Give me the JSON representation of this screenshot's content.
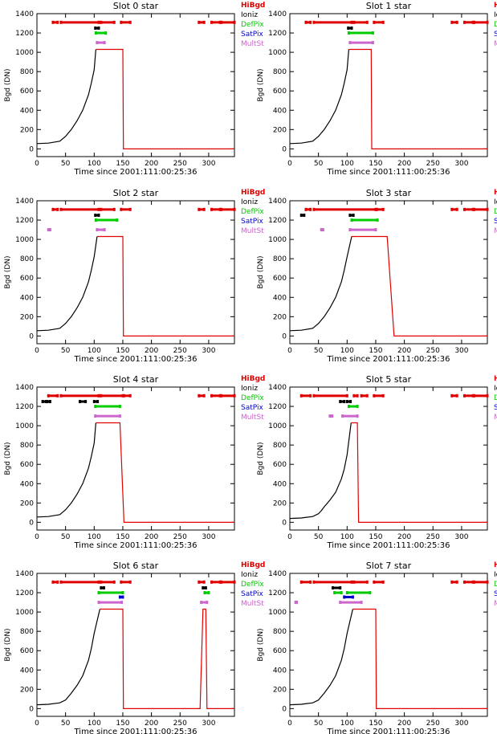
{
  "legend": [
    {
      "label": "HiBgd",
      "color": "#e00000"
    },
    {
      "label": "Ioniz",
      "color": "#000000"
    },
    {
      "label": "DefPix",
      "color": "#00cc00"
    },
    {
      "label": "SatPix",
      "color": "#0000cc"
    },
    {
      "label": "MultSt",
      "color": "#cc66cc"
    }
  ],
  "chart_data": [
    {
      "type": "line",
      "title": "Slot 0 star",
      "xlabel": "Time since 2001:111:00:25:36",
      "ylabel": "Bgd (DN)",
      "xlim": [
        0,
        345
      ],
      "ylim": [
        -80,
        1400
      ],
      "xticks": [
        0,
        50,
        100,
        150,
        200,
        250,
        300
      ],
      "yticks": [
        0,
        200,
        400,
        600,
        800,
        1000,
        1200,
        1400
      ],
      "black_end": 103,
      "series": [
        {
          "x": [
            0,
            20,
            40,
            50,
            60,
            70,
            80,
            90,
            95,
            100,
            103,
            150,
            151,
            345
          ],
          "y": [
            55,
            60,
            80,
            130,
            200,
            290,
            400,
            560,
            680,
            820,
            1030,
            1030,
            0,
            0
          ]
        }
      ],
      "flags": {
        "HiBgd": [
          [
            28,
            36
          ],
          [
            42,
            108
          ],
          [
            112,
            135
          ],
          [
            147,
            163
          ],
          [
            283,
            292
          ],
          [
            305,
            320
          ],
          [
            322,
            345
          ]
        ],
        "Ioniz": [
          [
            102,
            108
          ]
        ],
        "DefPix": [
          [
            103,
            120
          ]
        ],
        "SatPix": [],
        "MultSt": [
          [
            105,
            118
          ]
        ]
      }
    },
    {
      "type": "line",
      "title": "Slot 1 star",
      "xlabel": "Time since 2001:111:00:25:36",
      "ylabel": "Bgd (DN)",
      "xlim": [
        0,
        345
      ],
      "ylim": [
        -80,
        1400
      ],
      "xticks": [
        0,
        50,
        100,
        150,
        200,
        250,
        300
      ],
      "yticks": [
        0,
        200,
        400,
        600,
        800,
        1000,
        1200,
        1400
      ],
      "black_end": 103,
      "series": [
        {
          "x": [
            0,
            20,
            40,
            50,
            60,
            70,
            80,
            90,
            95,
            100,
            103,
            142,
            143,
            345
          ],
          "y": [
            55,
            60,
            80,
            130,
            200,
            290,
            400,
            560,
            680,
            820,
            1030,
            1030,
            0,
            0
          ]
        }
      ],
      "flags": {
        "HiBgd": [
          [
            28,
            36
          ],
          [
            42,
            108
          ],
          [
            112,
            135
          ],
          [
            147,
            163
          ],
          [
            283,
            292
          ],
          [
            305,
            320
          ],
          [
            322,
            345
          ]
        ],
        "Ioniz": [
          [
            102,
            108
          ]
        ],
        "DefPix": [
          [
            103,
            145
          ]
        ],
        "SatPix": [],
        "MultSt": [
          [
            105,
            145
          ]
        ]
      }
    },
    {
      "type": "line",
      "title": "Slot 2 star",
      "xlabel": "Time since 2001:111:00:25:36",
      "ylabel": "Bgd (DN)",
      "xlim": [
        0,
        345
      ],
      "ylim": [
        -80,
        1400
      ],
      "xticks": [
        0,
        50,
        100,
        150,
        200,
        250,
        300
      ],
      "yticks": [
        0,
        200,
        400,
        600,
        800,
        1000,
        1200,
        1400
      ],
      "black_end": 105,
      "series": [
        {
          "x": [
            0,
            20,
            40,
            50,
            60,
            70,
            80,
            90,
            95,
            100,
            105,
            150,
            151,
            345
          ],
          "y": [
            55,
            60,
            80,
            130,
            200,
            290,
            400,
            560,
            680,
            820,
            1030,
            1030,
            0,
            0
          ]
        }
      ],
      "flags": {
        "HiBgd": [
          [
            28,
            36
          ],
          [
            42,
            108
          ],
          [
            112,
            135
          ],
          [
            147,
            163
          ],
          [
            283,
            292
          ],
          [
            305,
            320
          ],
          [
            322,
            345
          ]
        ],
        "Ioniz": [
          [
            102,
            108
          ]
        ],
        "DefPix": [
          [
            103,
            140
          ]
        ],
        "SatPix": [],
        "MultSt": [
          [
            20,
            23
          ],
          [
            105,
            118
          ]
        ]
      }
    },
    {
      "type": "line",
      "title": "Slot 3 star",
      "xlabel": "Time since 2001:111:00:25:36",
      "ylabel": "Bgd (DN)",
      "xlim": [
        0,
        345
      ],
      "ylim": [
        -80,
        1400
      ],
      "xticks": [
        0,
        50,
        100,
        150,
        200,
        250,
        300
      ],
      "yticks": [
        0,
        200,
        400,
        600,
        800,
        1000,
        1200,
        1400
      ],
      "black_end": 108,
      "series": [
        {
          "x": [
            0,
            20,
            40,
            50,
            60,
            70,
            80,
            90,
            95,
            100,
            108,
            170,
            182,
            345
          ],
          "y": [
            55,
            60,
            80,
            130,
            200,
            290,
            400,
            560,
            680,
            820,
            1030,
            1030,
            0,
            0
          ]
        }
      ],
      "flags": {
        "HiBgd": [
          [
            28,
            36
          ],
          [
            42,
            150
          ],
          [
            152,
            163
          ],
          [
            283,
            292
          ],
          [
            305,
            320
          ],
          [
            322,
            345
          ]
        ],
        "Ioniz": [
          [
            20,
            25
          ],
          [
            105,
            111
          ]
        ],
        "DefPix": [
          [
            108,
            153
          ]
        ],
        "SatPix": [],
        "MultSt": [
          [
            55,
            58
          ],
          [
            105,
            150
          ]
        ]
      }
    },
    {
      "type": "line",
      "title": "Slot 4 star",
      "xlabel": "Time since 2001:111:00:25:36",
      "ylabel": "Bgd (DN)",
      "xlim": [
        0,
        345
      ],
      "ylim": [
        -80,
        1400
      ],
      "xticks": [
        0,
        50,
        100,
        150,
        200,
        250,
        300
      ],
      "yticks": [
        0,
        200,
        400,
        600,
        800,
        1000,
        1200,
        1400
      ],
      "black_end": 103,
      "series": [
        {
          "x": [
            0,
            20,
            40,
            50,
            60,
            70,
            80,
            90,
            95,
            100,
            103,
            145,
            152,
            345
          ],
          "y": [
            55,
            60,
            80,
            130,
            200,
            290,
            400,
            560,
            680,
            820,
            1030,
            1030,
            0,
            0
          ]
        }
      ],
      "flags": {
        "HiBgd": [
          [
            20,
            36
          ],
          [
            42,
            108
          ],
          [
            112,
            150
          ],
          [
            152,
            163
          ],
          [
            283,
            292
          ],
          [
            305,
            320
          ],
          [
            322,
            345
          ]
        ],
        "Ioniz": [
          [
            10,
            16
          ],
          [
            18,
            23
          ],
          [
            75,
            85
          ],
          [
            100,
            106
          ]
        ],
        "DefPix": [
          [
            102,
            145
          ]
        ],
        "SatPix": [],
        "MultSt": [
          [
            102,
            145
          ]
        ]
      }
    },
    {
      "type": "line",
      "title": "Slot 5 star",
      "xlabel": "Time since 2001:111:00:25:36",
      "ylabel": "Bgd (DN)",
      "xlim": [
        0,
        345
      ],
      "ylim": [
        -80,
        1400
      ],
      "xticks": [
        0,
        50,
        100,
        150,
        200,
        250,
        300
      ],
      "yticks": [
        0,
        200,
        400,
        600,
        800,
        1000,
        1200,
        1400
      ],
      "black_end": 107,
      "series": [
        {
          "x": [
            0,
            20,
            40,
            50,
            55,
            60,
            70,
            80,
            85,
            90,
            95,
            100,
            107,
            118,
            120,
            345
          ],
          "y": [
            40,
            45,
            60,
            90,
            120,
            160,
            230,
            310,
            380,
            450,
            550,
            700,
            1030,
            1030,
            0,
            0
          ]
        }
      ],
      "flags": {
        "HiBgd": [
          [
            20,
            36
          ],
          [
            42,
            100
          ],
          [
            112,
            118
          ],
          [
            125,
            135
          ],
          [
            147,
            163
          ],
          [
            283,
            292
          ],
          [
            305,
            320
          ],
          [
            322,
            345
          ]
        ],
        "Ioniz": [
          [
            88,
            95
          ],
          [
            100,
            106
          ]
        ],
        "DefPix": [
          [
            103,
            118
          ]
        ],
        "SatPix": [],
        "MultSt": [
          [
            70,
            74
          ],
          [
            92,
            118
          ]
        ]
      }
    },
    {
      "type": "line",
      "title": "Slot 6 star",
      "xlabel": "Time since 2001:111:00:25:36",
      "ylabel": "Bgd (DN)",
      "xlim": [
        0,
        345
      ],
      "ylim": [
        -80,
        1400
      ],
      "xticks": [
        0,
        50,
        100,
        150,
        200,
        250,
        300
      ],
      "yticks": [
        0,
        200,
        400,
        600,
        800,
        1000,
        1200,
        1400
      ],
      "black_end": 110,
      "series": [
        {
          "x": [
            0,
            20,
            40,
            50,
            60,
            70,
            80,
            90,
            95,
            100,
            110,
            150,
            151,
            285,
            290,
            295,
            297,
            345
          ],
          "y": [
            40,
            45,
            60,
            90,
            160,
            240,
            340,
            500,
            620,
            780,
            1030,
            1030,
            0,
            0,
            1030,
            1030,
            0,
            0
          ]
        }
      ],
      "flags": {
        "HiBgd": [
          [
            28,
            36
          ],
          [
            42,
            108
          ],
          [
            112,
            135
          ],
          [
            147,
            163
          ],
          [
            283,
            292
          ],
          [
            305,
            320
          ],
          [
            322,
            345
          ]
        ],
        "Ioniz": [
          [
            112,
            117
          ],
          [
            290,
            295
          ]
        ],
        "DefPix": [
          [
            108,
            150
          ],
          [
            293,
            300
          ]
        ],
        "SatPix": [
          [
            145,
            150
          ]
        ],
        "MultSt": [
          [
            108,
            148
          ],
          [
            287,
            297
          ]
        ]
      }
    },
    {
      "type": "line",
      "title": "Slot 7 star",
      "xlabel": "Time since 2001:111:00:25:36",
      "ylabel": "Bgd (DN)",
      "xlim": [
        0,
        345
      ],
      "ylim": [
        -80,
        1400
      ],
      "xticks": [
        0,
        50,
        100,
        150,
        200,
        250,
        300
      ],
      "yticks": [
        0,
        200,
        400,
        600,
        800,
        1000,
        1200,
        1400
      ],
      "black_end": 110,
      "series": [
        {
          "x": [
            0,
            20,
            40,
            50,
            60,
            70,
            80,
            90,
            95,
            100,
            110,
            150,
            151,
            345
          ],
          "y": [
            40,
            45,
            60,
            90,
            160,
            240,
            340,
            500,
            620,
            780,
            1030,
            1030,
            0,
            0
          ]
        }
      ],
      "flags": {
        "HiBgd": [
          [
            20,
            36
          ],
          [
            42,
            108
          ],
          [
            112,
            135
          ],
          [
            147,
            163
          ],
          [
            283,
            292
          ],
          [
            305,
            320
          ],
          [
            322,
            345
          ]
        ],
        "Ioniz": [
          [
            75,
            88
          ]
        ],
        "DefPix": [
          [
            78,
            90
          ],
          [
            100,
            140
          ]
        ],
        "SatPix": [
          [
            95,
            110
          ]
        ],
        "MultSt": [
          [
            10,
            12
          ],
          [
            88,
            125
          ]
        ]
      }
    }
  ]
}
